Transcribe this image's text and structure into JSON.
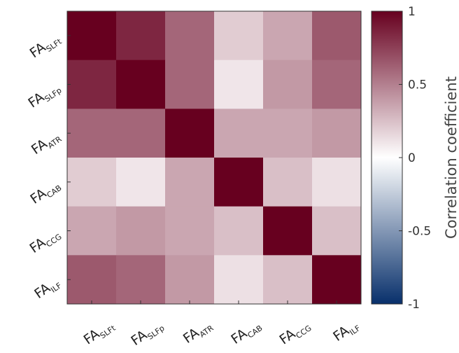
{
  "chart_data": {
    "type": "heatmap",
    "categories": [
      {
        "main": "FA",
        "sub": "SLFt"
      },
      {
        "main": "FA",
        "sub": "SLFp"
      },
      {
        "main": "FA",
        "sub": "ATR"
      },
      {
        "main": "FA",
        "sub": "CAB"
      },
      {
        "main": "FA",
        "sub": "CCG"
      },
      {
        "main": "FA",
        "sub": "ILF"
      }
    ],
    "values": [
      [
        1,
        0.85,
        0.6,
        0.2,
        0.35,
        0.65
      ],
      [
        0.85,
        1,
        0.6,
        0.1,
        0.4,
        0.6
      ],
      [
        0.6,
        0.6,
        1,
        0.35,
        0.35,
        0.4
      ],
      [
        0.2,
        0.1,
        0.35,
        1,
        0.25,
        0.12
      ],
      [
        0.35,
        0.4,
        0.35,
        0.25,
        1,
        0.25
      ],
      [
        0.65,
        0.6,
        0.4,
        0.12,
        0.25,
        1
      ]
    ],
    "zlim": [
      -1,
      1
    ],
    "zticks": [
      -1,
      -0.5,
      0,
      0.5,
      1
    ],
    "colorbar_label": "Correlation coefficient",
    "colormap": [
      "#08306b",
      "#ffffff",
      "#67001f"
    ]
  }
}
